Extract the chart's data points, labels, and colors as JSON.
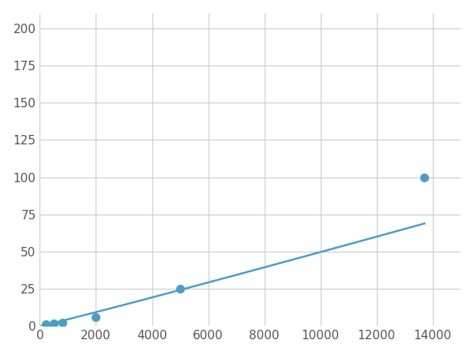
{
  "x": [
    200,
    500,
    800,
    2000,
    5000,
    13700
  ],
  "y": [
    1.5,
    2.0,
    2.5,
    6.0,
    25.0,
    100.0
  ],
  "marker_x": [
    200,
    500,
    800,
    2000,
    5000,
    13700
  ],
  "marker_y": [
    1.5,
    2.0,
    2.5,
    6.0,
    25.0,
    100.0
  ],
  "line_color": "#4d9ec5",
  "marker_color": "#4d9ec5",
  "marker_size": 7,
  "xlim": [
    0,
    15000
  ],
  "ylim": [
    0,
    210
  ],
  "xticks": [
    0,
    2000,
    4000,
    6000,
    8000,
    10000,
    12000,
    14000
  ],
  "yticks": [
    0,
    25,
    50,
    75,
    100,
    125,
    150,
    175,
    200
  ],
  "grid_color": "#cccccc",
  "background_color": "#ffffff",
  "line_width": 1.8,
  "tick_labelsize": 11,
  "tick_color": "#555555"
}
